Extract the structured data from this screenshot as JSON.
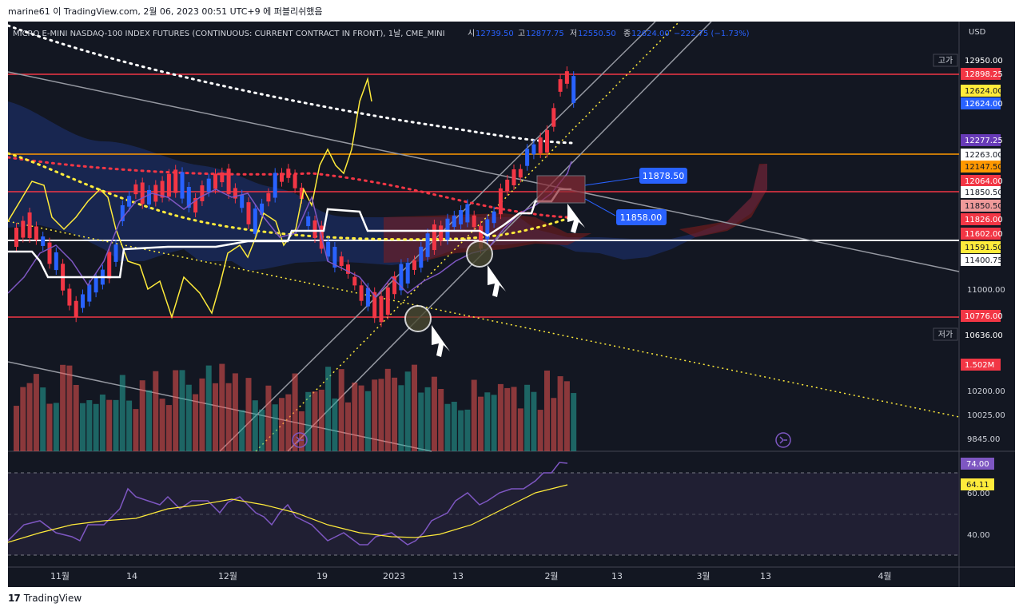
{
  "header": {
    "publisher_line": "marine61 이 TradingView.com, 2월 06, 2023 00:51 UTC+9 에 퍼블리쉬했음"
  },
  "legend": {
    "symbol": "MICRO E-MINI NASDAQ-100 INDEX FUTURES (CONTINUOUS: CURRENT CONTRACT IN FRONT), 1날, CME_MINI",
    "open_label": "시",
    "open_value": "12739.50",
    "high_label": "고",
    "high_value": "12877.75",
    "low_label": "저",
    "low_value": "12550.50",
    "close_label": "종",
    "close_value": "12624.00",
    "change": "−222.75 (−1.73%)"
  },
  "price_axis": {
    "currency": "USD",
    "ticks": [
      "11000.00",
      "10636.00",
      "10200.00",
      "10025.00",
      "9845.00"
    ],
    "high_tag_label": "고가",
    "low_tag_label": "저가",
    "tags": [
      {
        "text": "12950.00",
        "bg": "#131722",
        "fg": "#ffffff"
      },
      {
        "text": "12898.25",
        "bg": "#f23645",
        "fg": "#ffffff"
      },
      {
        "text": "12624.00",
        "bg": "#ffeb3b",
        "fg": "#131722"
      },
      {
        "text": "12624.00",
        "bg": "#2962ff",
        "fg": "#ffffff"
      },
      {
        "text": "12277.25",
        "bg": "#673ab7",
        "fg": "#ffffff"
      },
      {
        "text": "12263.00",
        "bg": "#ffffff",
        "fg": "#131722"
      },
      {
        "text": "12147.50",
        "bg": "#ff9800",
        "fg": "#131722"
      },
      {
        "text": "12064.00",
        "bg": "#f23645",
        "fg": "#ffffff"
      },
      {
        "text": "11850.50",
        "bg": "#ffffff",
        "fg": "#131722"
      },
      {
        "text": "11850.50",
        "bg": "#ef9a9a",
        "fg": "#131722"
      },
      {
        "text": "11826.00",
        "bg": "#f23645",
        "fg": "#ffffff"
      },
      {
        "text": "11602.00",
        "bg": "#f23645",
        "fg": "#ffffff"
      },
      {
        "text": "11591.50",
        "bg": "#ffeb3b",
        "fg": "#131722"
      },
      {
        "text": "11400.75",
        "bg": "#ffffff",
        "fg": "#131722"
      },
      {
        "text": "10776.00",
        "bg": "#f23645",
        "fg": "#ffffff"
      },
      {
        "text": "10636.00",
        "bg": "#131722",
        "fg": "#ffffff"
      }
    ],
    "volume_tag": "1.502M"
  },
  "callouts": {
    "upper": "11878.50",
    "lower": "11858.00"
  },
  "oscillator_axis": {
    "ticks": [
      "60.00",
      "40.00"
    ],
    "tags": [
      {
        "text": "74.00",
        "bg": "#7e57c2",
        "fg": "#ffffff"
      },
      {
        "text": "64.11",
        "bg": "#ffeb3b",
        "fg": "#131722"
      }
    ]
  },
  "time_axis": [
    "11월",
    "14",
    "12월",
    "19",
    "2023",
    "13",
    "2월",
    "13",
    "3월",
    "13",
    "4월"
  ],
  "footer": {
    "brand": "TradingView",
    "mark": "17"
  },
  "colors": {
    "background": "#131722",
    "up": "#2962ff",
    "down": "#f23645",
    "grid": "#2a2e39"
  }
}
